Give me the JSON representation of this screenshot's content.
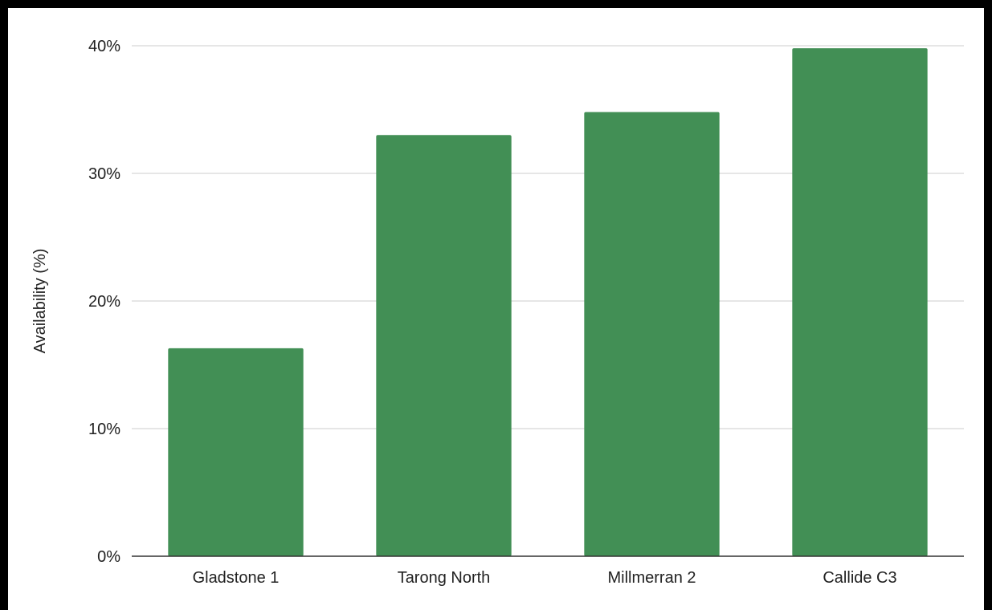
{
  "chart_data": {
    "type": "bar",
    "title": "",
    "xlabel": "",
    "ylabel": "Availability (%)",
    "categories": [
      "Gladstone 1",
      "Tarong North",
      "Millmerran 2",
      "Callide C3"
    ],
    "values": [
      16.3,
      33.0,
      34.8,
      39.8
    ],
    "ylim": [
      0,
      40
    ],
    "y_ticks": [
      0,
      10,
      20,
      30,
      40
    ],
    "y_tick_labels": [
      "0%",
      "10%",
      "20%",
      "30%",
      "40%"
    ],
    "grid": true,
    "legend": "none",
    "colors": {
      "bar": "#428f55",
      "grid": "#cccccc",
      "frame": "#000000"
    }
  }
}
